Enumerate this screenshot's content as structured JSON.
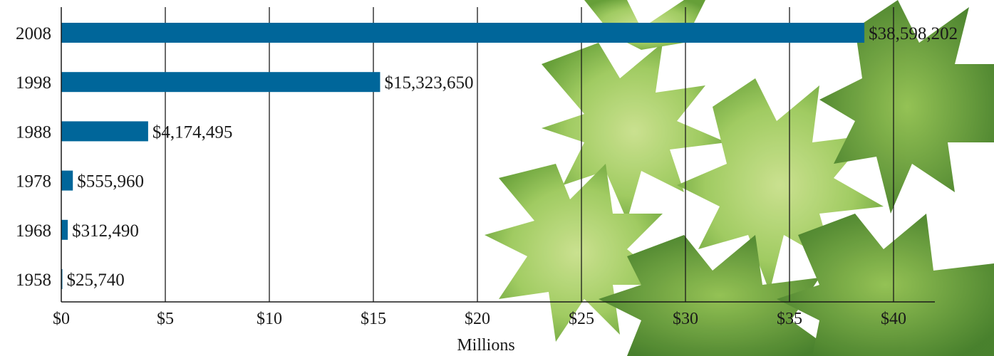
{
  "chart_data": {
    "type": "bar",
    "orientation": "horizontal",
    "categories": [
      "2008",
      "1998",
      "1988",
      "1978",
      "1968",
      "1958"
    ],
    "values": [
      38598202,
      15323650,
      4174495,
      555960,
      312490,
      25740
    ],
    "data_labels": [
      "$38,598,202",
      "$15,323,650",
      "$4,174,495",
      "$555,960",
      "$312,490",
      "$25,740"
    ],
    "x_ticks": [
      0,
      5,
      10,
      15,
      20,
      25,
      30,
      35,
      40
    ],
    "x_tick_labels": [
      "$0",
      "$5",
      "$10",
      "$15",
      "$20",
      "$25",
      "$30",
      "$35",
      "$40"
    ],
    "xlabel": "Millions",
    "xlim": [
      0,
      42
    ],
    "x_unit_scale": 1000000,
    "grid": "vertical",
    "bar_color": "#00669a",
    "background": "green leaves photo on right side"
  }
}
